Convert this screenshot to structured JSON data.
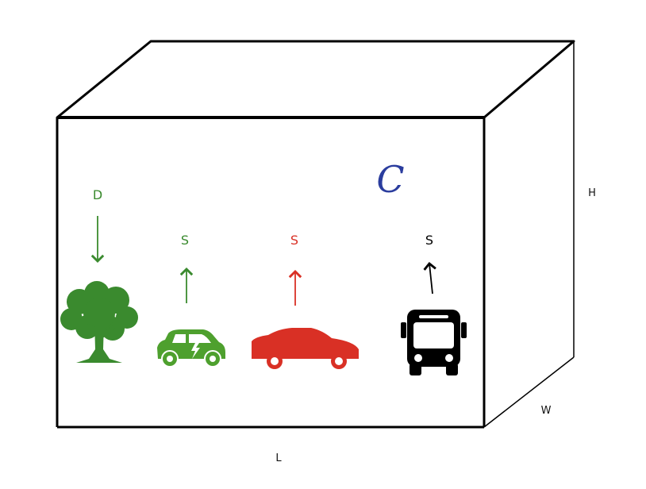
{
  "colors": {
    "green": "#3a8a2e",
    "light_green": "#4ea02e",
    "red": "#d93025",
    "black": "#000000",
    "blue": "#2b3d9e"
  },
  "container": {
    "symbol": "C",
    "dimensions": {
      "length": "L",
      "width": "W",
      "height": "H"
    }
  },
  "items": [
    {
      "icon": "tree-icon",
      "flux_label": "D",
      "direction": "down",
      "color": "#3a8a2e"
    },
    {
      "icon": "electric-car-icon",
      "flux_label": "S",
      "direction": "up",
      "color": "#3a8a2e"
    },
    {
      "icon": "car-icon",
      "flux_label": "S",
      "direction": "up",
      "color": "#d93025"
    },
    {
      "icon": "bus-icon",
      "flux_label": "S",
      "direction": "up",
      "color": "#000000"
    }
  ]
}
